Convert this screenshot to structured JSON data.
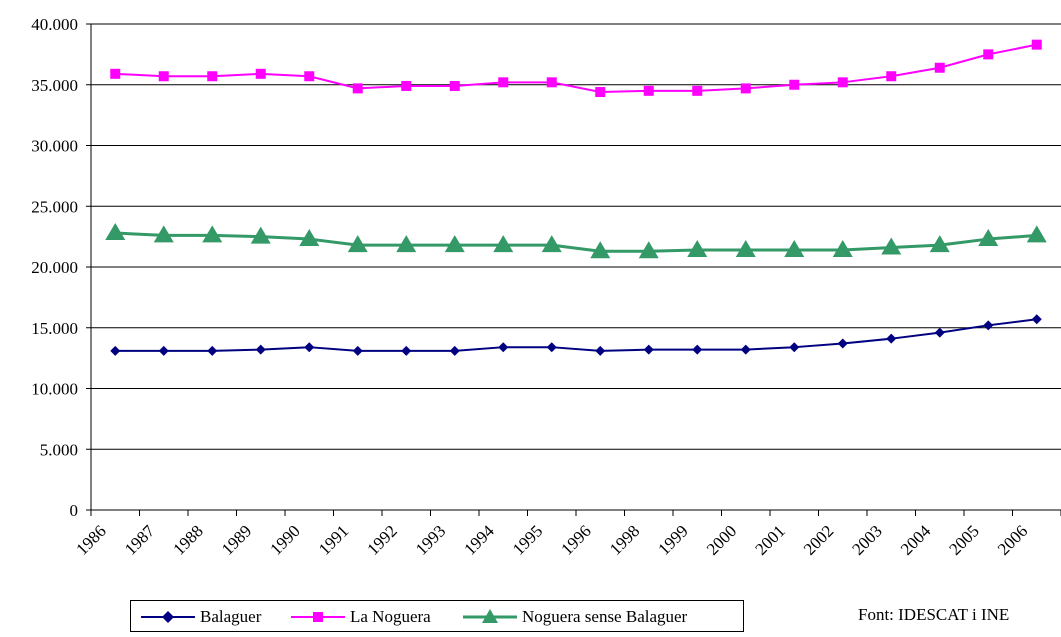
{
  "chart_data": {
    "type": "line",
    "title": "",
    "xlabel": "",
    "ylabel": "",
    "categories": [
      "1986",
      "1987",
      "1988",
      "1989",
      "1990",
      "1991",
      "1992",
      "1993",
      "1994",
      "1995",
      "1996",
      "1998",
      "1999",
      "2000",
      "2001",
      "2002",
      "2003",
      "2004",
      "2005",
      "2006"
    ],
    "ylim": [
      0,
      40000
    ],
    "yticks": [
      0,
      5000,
      10000,
      15000,
      20000,
      25000,
      30000,
      35000,
      40000
    ],
    "ytick_labels": [
      "0",
      "5.000",
      "10.000",
      "15.000",
      "20.000",
      "25.000",
      "30.000",
      "35.000",
      "40.000"
    ],
    "grid": true,
    "legend_position": "bottom",
    "series": [
      {
        "name": "Balaguer",
        "color": "#000080",
        "marker": "diamond",
        "values": [
          13100,
          13100,
          13100,
          13200,
          13400,
          13100,
          13100,
          13100,
          13400,
          13400,
          13100,
          13200,
          13200,
          13200,
          13400,
          13700,
          14100,
          14600,
          15200,
          15700
        ]
      },
      {
        "name": "La Noguera",
        "color": "#ff00ff",
        "marker": "square",
        "values": [
          35900,
          35700,
          35700,
          35900,
          35700,
          34700,
          34900,
          34900,
          35200,
          35200,
          34400,
          34500,
          34500,
          34700,
          35000,
          35200,
          35700,
          36400,
          37500,
          38300
        ]
      },
      {
        "name": "Noguera sense Balaguer",
        "color": "#339966",
        "marker": "triangle",
        "values": [
          22800,
          22600,
          22600,
          22500,
          22300,
          21800,
          21800,
          21800,
          21800,
          21800,
          21300,
          21300,
          21400,
          21400,
          21400,
          21400,
          21600,
          21800,
          22300,
          22600
        ]
      }
    ]
  },
  "footer": {
    "source": "Font: IDESCAT i INE"
  }
}
